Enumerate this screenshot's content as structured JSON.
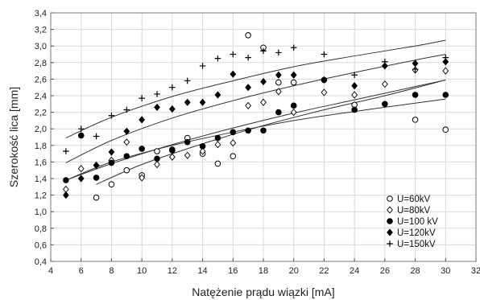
{
  "chart_data": {
    "type": "scatter",
    "xlabel": "Natężenie prądu wiązki [mA]",
    "ylabel": "Szerokość lica [mm]",
    "xlim": [
      4,
      32
    ],
    "ylim": [
      0.4,
      3.4
    ],
    "x_ticks": [
      4,
      6,
      8,
      10,
      12,
      14,
      16,
      18,
      20,
      22,
      24,
      26,
      28,
      30,
      32
    ],
    "x_tick_labels": [
      "4",
      "6",
      "8",
      "10",
      "12",
      "14",
      "16",
      "18",
      "20",
      "22",
      "24",
      "26",
      "28",
      "30",
      "32"
    ],
    "y_ticks": [
      0.4,
      0.6,
      0.8,
      1.0,
      1.2,
      1.4,
      1.6,
      1.8,
      2.0,
      2.2,
      2.4,
      2.6,
      2.8,
      3.0,
      3.2,
      3.4
    ],
    "y_tick_labels": [
      "0,4",
      "0,6",
      "0,8",
      "1,0",
      "1,2",
      "1,4",
      "1,6",
      "1,8",
      "2,0",
      "2,2",
      "2,4",
      "2,6",
      "2,8",
      "3,0",
      "3,2",
      "3,4"
    ],
    "grid": true,
    "legend_position": "bottom-right",
    "series": [
      {
        "name": "U=60kV",
        "marker": "open-circle",
        "x": [
          7,
          8,
          9,
          10,
          11,
          12,
          13,
          14,
          15,
          16,
          17,
          18,
          19,
          20,
          24,
          28,
          30
        ],
        "y": [
          1.17,
          1.33,
          1.5,
          1.44,
          1.73,
          1.75,
          1.89,
          1.7,
          1.58,
          1.67,
          3.13,
          2.98,
          2.56,
          2.56,
          2.29,
          2.11,
          1.99
        ],
        "fit": [
          [
            7,
            1.33
          ],
          [
            10,
            1.57
          ],
          [
            14,
            1.82
          ],
          [
            18,
            2.04
          ],
          [
            22,
            2.23
          ],
          [
            26,
            2.4
          ],
          [
            30,
            2.59
          ]
        ]
      },
      {
        "name": "U=80kV",
        "marker": "open-diamond",
        "x": [
          5,
          6,
          7,
          8,
          9,
          10,
          11,
          12,
          13,
          14,
          15,
          16,
          17,
          18,
          19,
          20,
          22,
          24,
          26,
          28,
          30
        ],
        "y": [
          1.27,
          1.52,
          1.56,
          1.62,
          1.84,
          1.41,
          1.57,
          1.66,
          1.68,
          1.73,
          1.81,
          1.83,
          2.28,
          2.32,
          2.45,
          2.2,
          2.44,
          2.41,
          2.54,
          2.71,
          2.7
        ],
        "fit": [
          [
            5,
            1.38
          ],
          [
            8,
            1.58
          ],
          [
            12,
            1.81
          ],
          [
            16,
            2.01
          ],
          [
            20,
            2.19
          ],
          [
            24,
            2.35
          ],
          [
            28,
            2.51
          ],
          [
            30,
            2.59
          ]
        ]
      },
      {
        "name": "U=100 kV",
        "marker": "filled-circle",
        "x": [
          5,
          6,
          7,
          8,
          9,
          10,
          11,
          12,
          13,
          14,
          15,
          16,
          17,
          18,
          19,
          20,
          22,
          24,
          26,
          28,
          30
        ],
        "y": [
          1.38,
          1.92,
          1.41,
          1.59,
          1.67,
          1.76,
          1.64,
          1.74,
          1.84,
          1.79,
          1.89,
          1.96,
          1.98,
          1.98,
          2.2,
          2.28,
          2.59,
          2.23,
          2.3,
          2.41,
          2.41
        ],
        "fit": [
          [
            5,
            1.38
          ],
          [
            8,
            1.6
          ],
          [
            12,
            1.8
          ],
          [
            16,
            1.96
          ],
          [
            20,
            2.1
          ],
          [
            24,
            2.21
          ],
          [
            28,
            2.31
          ],
          [
            30,
            2.36
          ]
        ]
      },
      {
        "name": "U=120kV",
        "marker": "filled-diamond",
        "x": [
          5,
          6,
          7,
          8,
          9,
          10,
          11,
          12,
          13,
          14,
          15,
          16,
          17,
          18,
          19,
          20,
          22,
          24,
          26,
          28,
          30
        ],
        "y": [
          1.2,
          1.4,
          1.56,
          1.72,
          1.97,
          2.11,
          2.26,
          2.24,
          2.32,
          2.32,
          2.41,
          2.66,
          2.5,
          2.57,
          2.65,
          2.65,
          2.59,
          2.52,
          2.76,
          2.79,
          2.81
        ],
        "fit": [
          [
            5,
            1.59
          ],
          [
            8,
            1.86
          ],
          [
            12,
            2.13
          ],
          [
            16,
            2.34
          ],
          [
            20,
            2.52
          ],
          [
            24,
            2.68
          ],
          [
            28,
            2.83
          ],
          [
            30,
            2.9
          ]
        ]
      },
      {
        "name": "U=150kV",
        "marker": "plus",
        "x": [
          5,
          6,
          7,
          8,
          9,
          10,
          11,
          12,
          13,
          14,
          15,
          16,
          17,
          18,
          19,
          20,
          22,
          24,
          26,
          28,
          30
        ],
        "y": [
          1.73,
          2.0,
          1.91,
          2.16,
          2.23,
          2.37,
          2.42,
          2.5,
          2.58,
          2.76,
          2.85,
          2.9,
          2.86,
          2.94,
          2.92,
          2.98,
          2.9,
          2.65,
          2.81,
          2.72,
          2.86
        ],
        "fit": [
          [
            5,
            1.89
          ],
          [
            8,
            2.14
          ],
          [
            12,
            2.39
          ],
          [
            16,
            2.58
          ],
          [
            20,
            2.75
          ],
          [
            24,
            2.88
          ],
          [
            28,
            3.0
          ],
          [
            30,
            3.07
          ]
        ]
      }
    ]
  }
}
